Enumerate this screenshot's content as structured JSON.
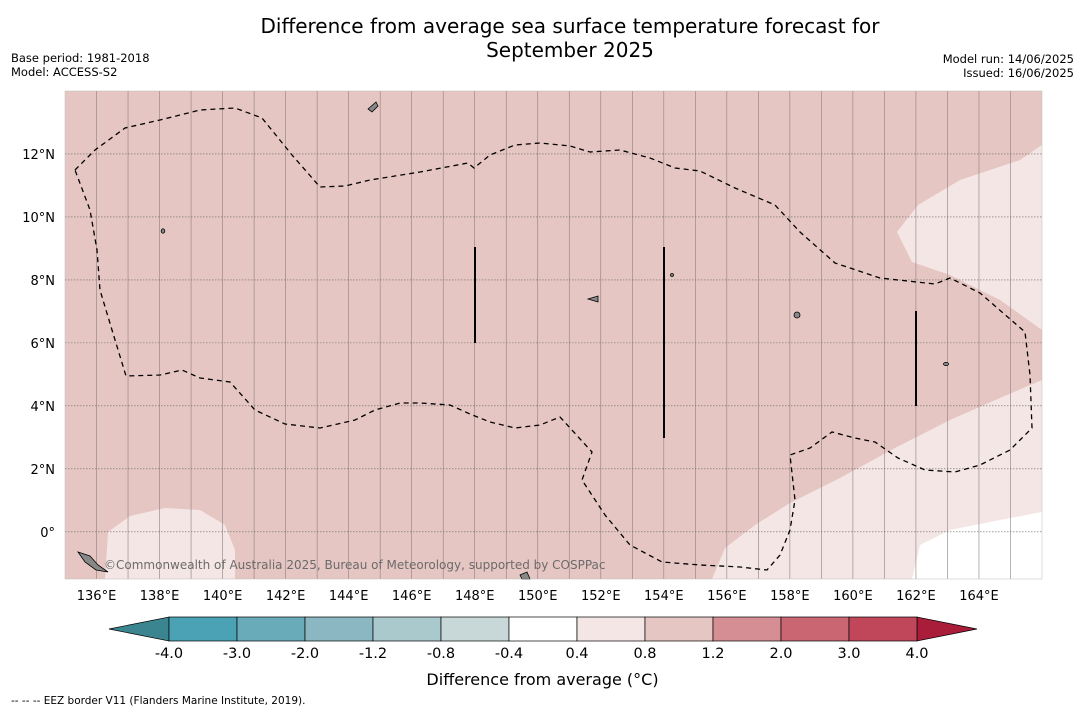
{
  "title_line1": "Difference from average sea surface temperature forecast for",
  "title_line2": "September 2025",
  "base_period": "Base period: 1981-2018",
  "model": "Model: ACCESS-S2",
  "model_run": "Model run: 14/06/2025",
  "issued": "Issued: 16/06/2025",
  "copyright": "©Commonwealth of Australia 2025, Bureau of Meteorology, supported by COSPPac",
  "footnote": "--  --  -- EEZ border V11 (Flanders Marine Institute, 2019).",
  "chart_data": {
    "type": "heatmap",
    "title": "Difference from average sea surface temperature forecast for September 2025",
    "x_axis": {
      "ticks": [
        "136°E",
        "138°E",
        "140°E",
        "142°E",
        "144°E",
        "146°E",
        "148°E",
        "150°E",
        "152°E",
        "154°E",
        "156°E",
        "158°E",
        "160°E",
        "162°E",
        "164°E"
      ],
      "values": [
        136,
        138,
        140,
        142,
        144,
        146,
        148,
        150,
        152,
        154,
        156,
        158,
        160,
        162,
        164
      ],
      "range": [
        135,
        166
      ]
    },
    "y_axis": {
      "ticks": [
        "0°",
        "2°N",
        "4°N",
        "6°N",
        "8°N",
        "10°N",
        "12°N"
      ],
      "values": [
        0,
        2,
        4,
        6,
        8,
        10,
        12
      ],
      "range": [
        -1.5,
        14
      ]
    },
    "grid": true,
    "colorbar": {
      "label": "Difference from average (°C)",
      "label_prefix": "Difference from average (",
      "label_unit": "°C)",
      "boundaries": [
        "-4.0",
        "-3.0",
        "-2.0",
        "-1.2",
        "-0.8",
        "-0.4",
        "0.4",
        "0.8",
        "1.2",
        "2.0",
        "3.0",
        "4.0"
      ],
      "colors": [
        "#4aa2b4",
        "#6aabba",
        "#8ab7c2",
        "#a9c9cd",
        "#c8d8d9",
        "#ffffff",
        "#f4e6e4",
        "#e6c6c2",
        "#d48e94",
        "#c96672",
        "#c0475a"
      ],
      "under_color": "#3b8590",
      "over_color": "#a91c3a",
      "extend": "both"
    },
    "regions": [
      {
        "name": "0.4 to 0.8",
        "color": "#f4e6e4"
      },
      {
        "name": "0.8 to 1.2",
        "color": "#e6c6c2"
      }
    ]
  }
}
